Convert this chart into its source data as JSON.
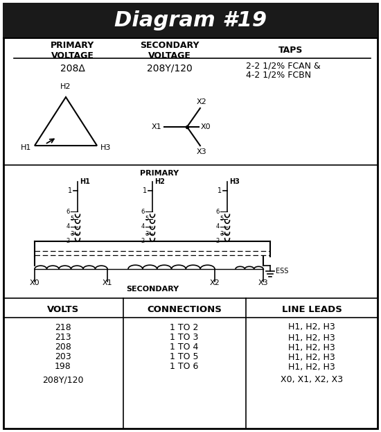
{
  "title": "Diagram #19",
  "title_bg": "#1a1a1a",
  "title_color": "#ffffff",
  "primary_voltage": "208Δ",
  "secondary_voltage": "208Y/120",
  "taps_line1": "2-2 1/2% FCAN &",
  "taps_line2": "4-2 1/2% FCBN",
  "table_volts": [
    "218",
    "213",
    "208",
    "203",
    "198",
    "208Y/120"
  ],
  "table_connections": [
    "1 TO 2",
    "1 TO 3",
    "1 TO 4",
    "1 TO 5",
    "1 TO 6",
    ""
  ],
  "table_line_leads": [
    "H1, H2, H3",
    "H1, H2, H3",
    "H1, H2, H3",
    "H1, H2, H3",
    "H1, H2, H3",
    "X0, X1, X2, X3"
  ],
  "bg_color": "#ffffff"
}
